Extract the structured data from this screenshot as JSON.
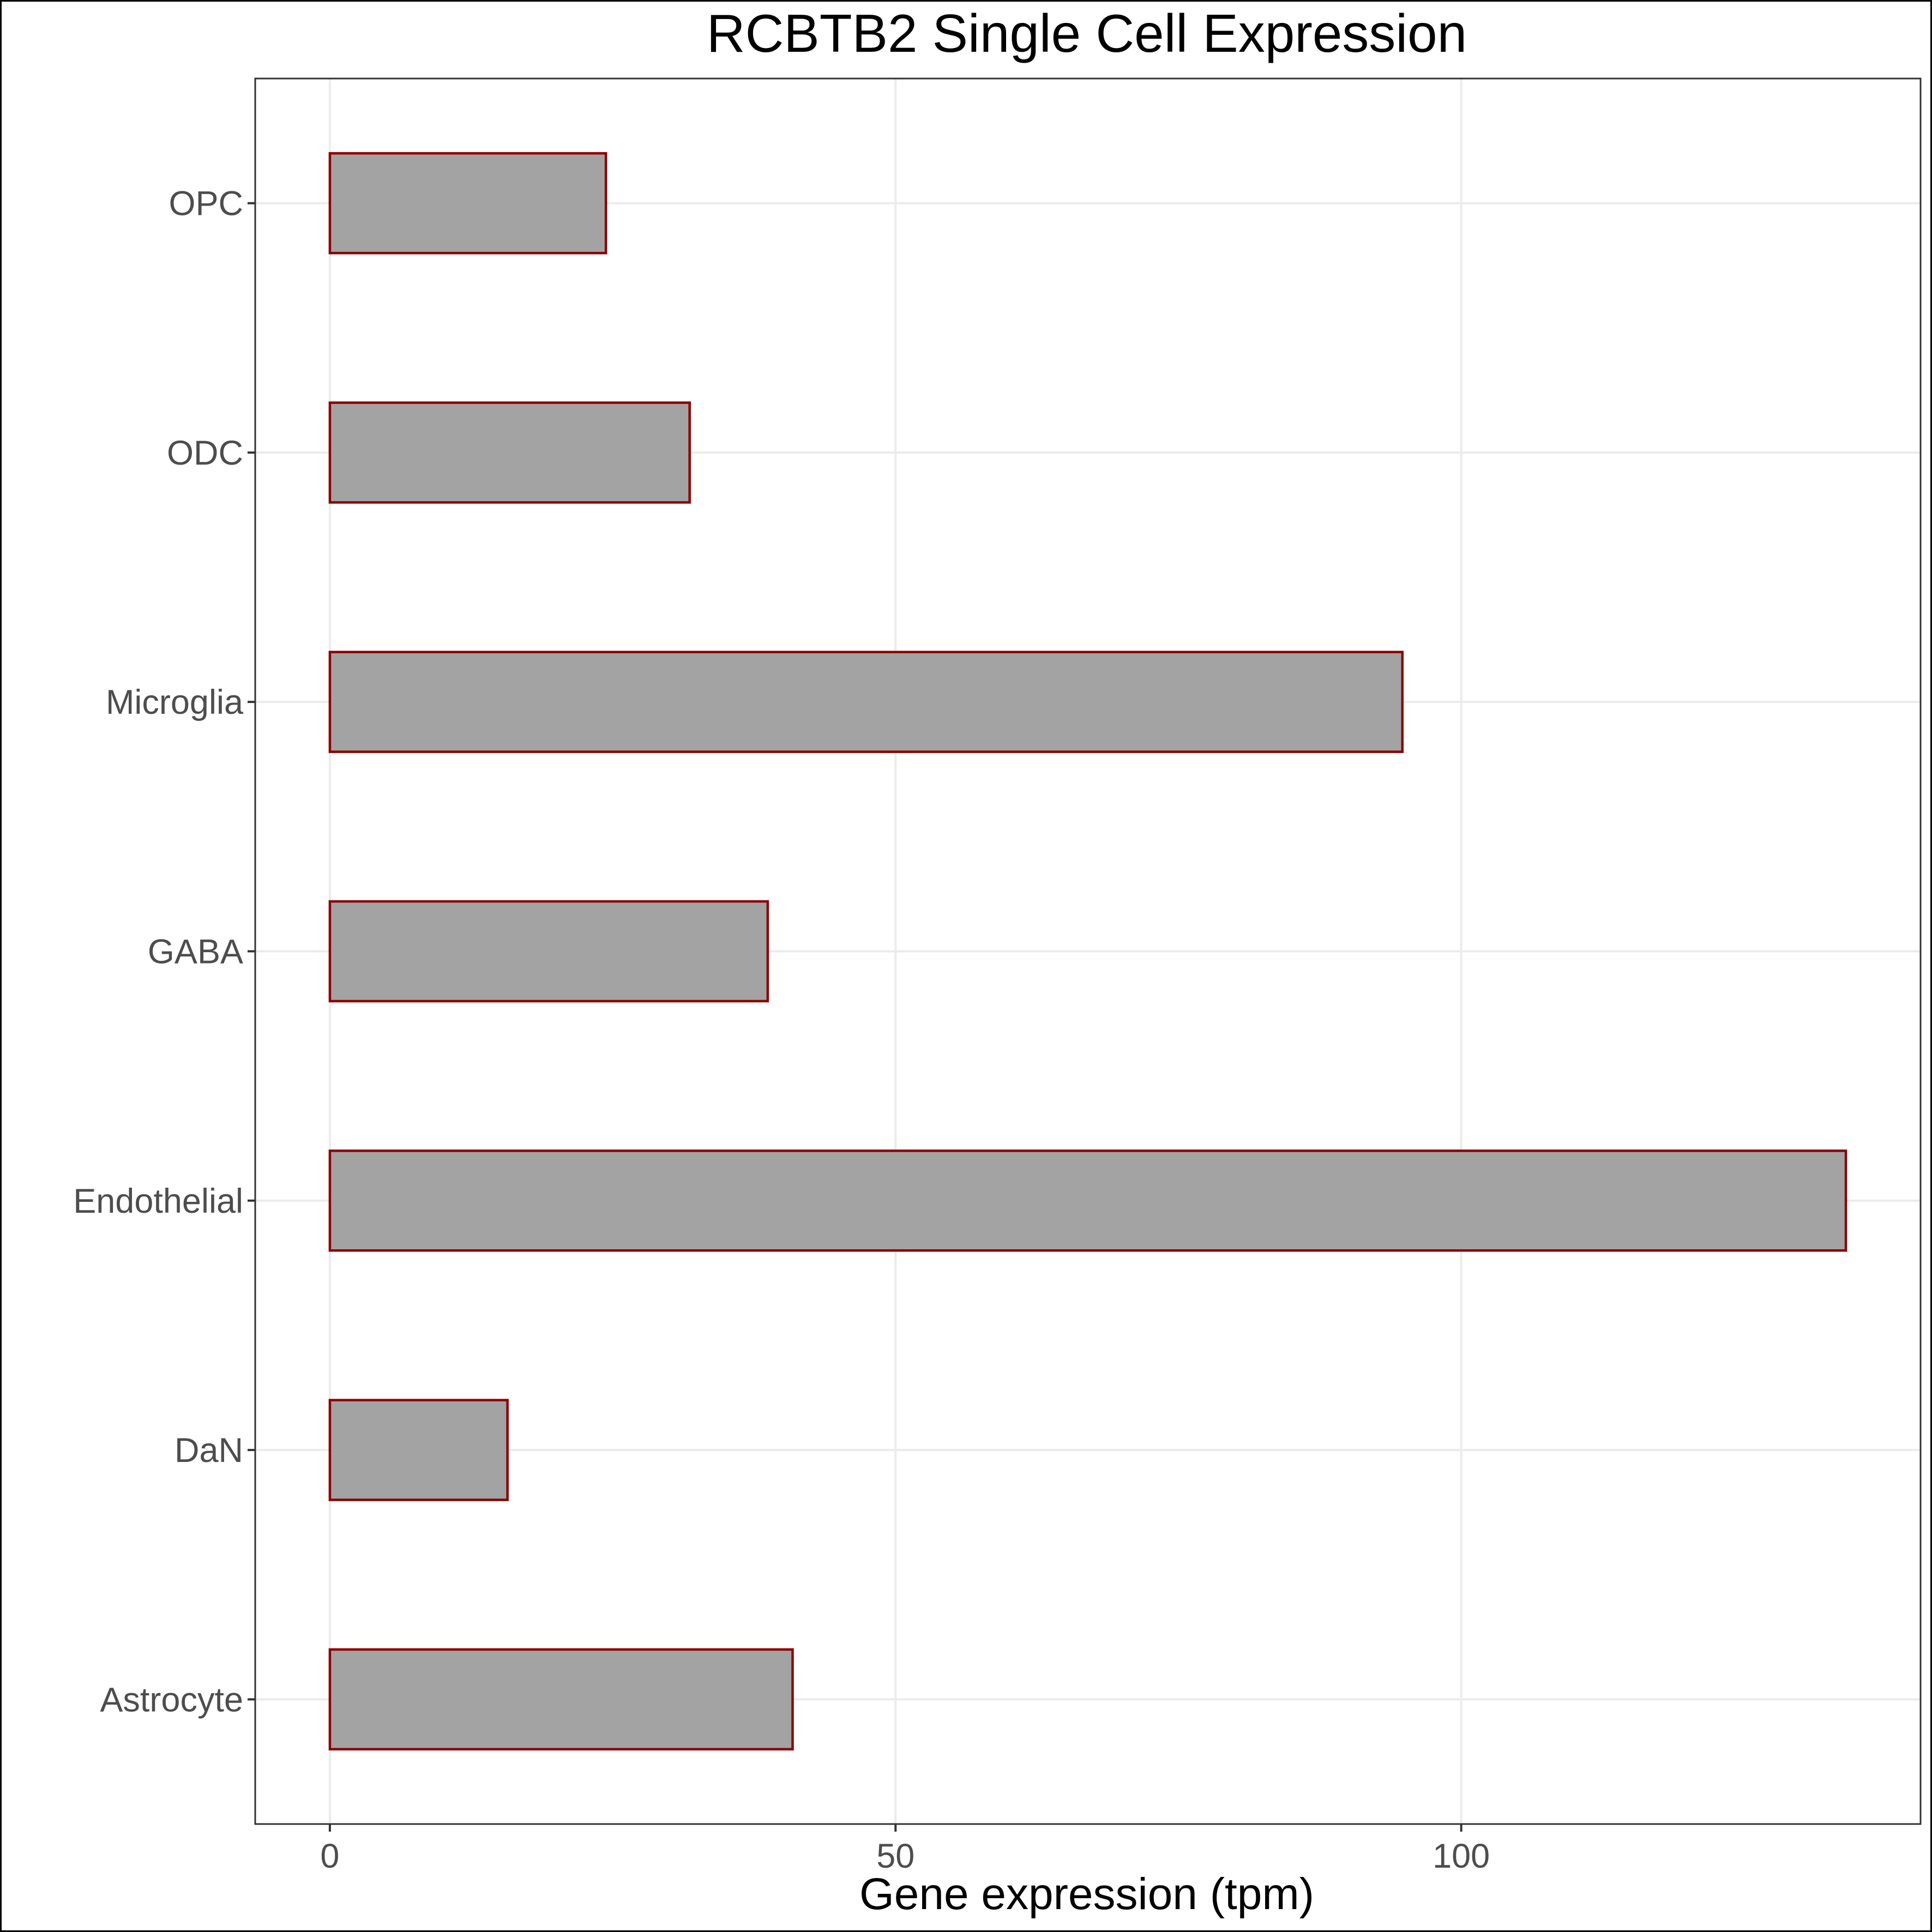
{
  "chart_data": {
    "type": "bar",
    "orientation": "horizontal",
    "title": "RCBTB2 Single Cell Expression",
    "xlabel": "Gene expression (tpm)",
    "ylabel": "",
    "categories": [
      "Astrocyte",
      "DaN",
      "Endothelial",
      "GABA",
      "Microglia",
      "ODC",
      "OPC"
    ],
    "values": [
      40.9,
      15.7,
      134.0,
      38.7,
      94.8,
      31.8,
      24.4
    ],
    "xlim": [
      -6.6,
      140.6
    ],
    "xticks": [
      0,
      50,
      100
    ],
    "grid": true,
    "legend": "none",
    "colors": {
      "bar_fill": "#a3a3a3",
      "bar_outline": "#8b0000",
      "grid": "#ebebeb"
    }
  }
}
